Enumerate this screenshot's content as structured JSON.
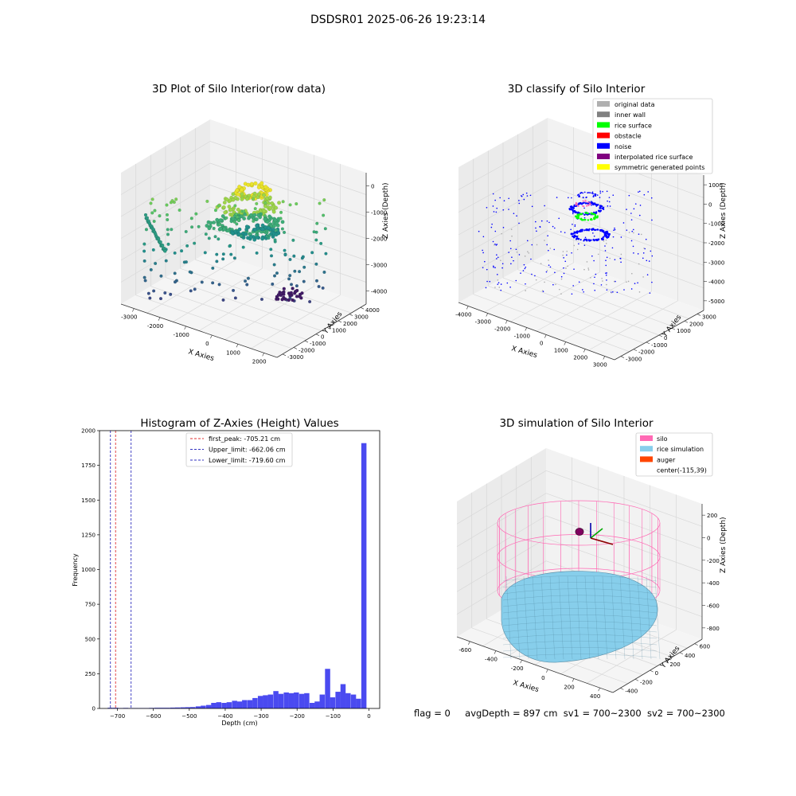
{
  "figure": {
    "suptitle": "DSDSR01 2025-06-26 19:23:14",
    "status": {
      "flag": "flag = 0",
      "avg_depth": "avgDepth = 897 cm",
      "sv1": "sv1 = 700~2300",
      "sv2": "sv2 = 700~2300"
    },
    "colors": {
      "hist_bar": "#4a4af0",
      "first_peak": "#e03030",
      "limits": "#3030c0",
      "silo": "#ff69b4",
      "rice_simulation": "#87ceeb",
      "auger": "#ff4500"
    }
  },
  "chart_data": [
    {
      "type": "scatter3d",
      "title": "3D Plot of Silo Interior(row data)",
      "xlabel": "X Axies",
      "ylabel": "Y Axies",
      "zlabel": "Z Axies (Depth)",
      "x_ticks": [
        "-3000",
        "-2000",
        "-1000",
        "0",
        "1000",
        "2000"
      ],
      "y_ticks": [
        "-3000",
        "-2000",
        "-1000",
        "0",
        "1000",
        "2000",
        "3000",
        "4000"
      ],
      "z_ticks": [
        "-4000",
        "-3000",
        "-2000",
        "-1000",
        "0"
      ],
      "xlim": [
        -3500,
        2500
      ],
      "ylim": [
        -3500,
        4000
      ],
      "zlim": [
        -4500,
        200
      ],
      "colormap": "viridis"
    },
    {
      "type": "scatter3d",
      "title": "3D classify of Silo Interior",
      "xlabel": "X Axies",
      "ylabel": "Y Axies",
      "zlabel": "Z Axies (Depth)",
      "x_ticks": [
        "-4000",
        "-3000",
        "-2000",
        "-1000",
        "0",
        "1000",
        "2000",
        "3000"
      ],
      "y_ticks": [
        "-3000",
        "-2000",
        "-1000",
        "0",
        "1000",
        "2000",
        "3000"
      ],
      "z_ticks": [
        "-5000",
        "-4000",
        "-3000",
        "-2000",
        "-1000",
        "0",
        "1000"
      ],
      "xlim": [
        -4200,
        3200
      ],
      "ylim": [
        -3500,
        3500
      ],
      "zlim": [
        -5500,
        1200
      ],
      "legend": {
        "placement": "upper-right",
        "entries": [
          {
            "label": "original data",
            "color": "#b0b0b0"
          },
          {
            "label": "inner wall",
            "color": "#808080"
          },
          {
            "label": "rice surface",
            "color": "#00ff00"
          },
          {
            "label": "obstacle",
            "color": "#ff0000"
          },
          {
            "label": "noise",
            "color": "#0000ff"
          },
          {
            "label": "interpolated rice surface",
            "color": "#800080"
          },
          {
            "label": "symmetric generated points",
            "color": "#ffff00"
          }
        ]
      }
    },
    {
      "type": "bar",
      "title": "Histogram of Z-Axies (Height) Values",
      "xlabel": "Depth (cm)",
      "ylabel": "Frequency",
      "xlim": [
        -750,
        30
      ],
      "ylim": [
        0,
        2000
      ],
      "x_ticks": [
        -700,
        -600,
        -500,
        -400,
        -300,
        -200,
        -100,
        0
      ],
      "y_ticks": [
        0,
        250,
        500,
        750,
        1000,
        1250,
        1500,
        1750,
        2000
      ],
      "bin_width": 14.4,
      "bins": [
        {
          "x": -720,
          "v": 5
        },
        {
          "x": -705,
          "v": 5
        },
        {
          "x": -691,
          "v": 3
        },
        {
          "x": -677,
          "v": 4
        },
        {
          "x": -662,
          "v": 3
        },
        {
          "x": -648,
          "v": 3
        },
        {
          "x": -633,
          "v": 3
        },
        {
          "x": -619,
          "v": 3
        },
        {
          "x": -605,
          "v": 4
        },
        {
          "x": -590,
          "v": 5
        },
        {
          "x": -576,
          "v": 5
        },
        {
          "x": -562,
          "v": 5
        },
        {
          "x": -547,
          "v": 6
        },
        {
          "x": -533,
          "v": 7
        },
        {
          "x": -518,
          "v": 8
        },
        {
          "x": -504,
          "v": 9
        },
        {
          "x": -490,
          "v": 10
        },
        {
          "x": -475,
          "v": 15
        },
        {
          "x": -461,
          "v": 20
        },
        {
          "x": -446,
          "v": 25
        },
        {
          "x": -432,
          "v": 40
        },
        {
          "x": -418,
          "v": 45
        },
        {
          "x": -403,
          "v": 40
        },
        {
          "x": -389,
          "v": 45
        },
        {
          "x": -374,
          "v": 55
        },
        {
          "x": -360,
          "v": 50
        },
        {
          "x": -346,
          "v": 60
        },
        {
          "x": -331,
          "v": 60
        },
        {
          "x": -317,
          "v": 75
        },
        {
          "x": -302,
          "v": 90
        },
        {
          "x": -288,
          "v": 95
        },
        {
          "x": -274,
          "v": 100
        },
        {
          "x": -259,
          "v": 125
        },
        {
          "x": -245,
          "v": 105
        },
        {
          "x": -230,
          "v": 115
        },
        {
          "x": -216,
          "v": 110
        },
        {
          "x": -202,
          "v": 115
        },
        {
          "x": -187,
          "v": 105
        },
        {
          "x": -173,
          "v": 110
        },
        {
          "x": -158,
          "v": 40
        },
        {
          "x": -144,
          "v": 50
        },
        {
          "x": -130,
          "v": 100
        },
        {
          "x": -115,
          "v": 285
        },
        {
          "x": -101,
          "v": 80
        },
        {
          "x": -86,
          "v": 120
        },
        {
          "x": -72,
          "v": 175
        },
        {
          "x": -58,
          "v": 110
        },
        {
          "x": -43,
          "v": 100
        },
        {
          "x": -29,
          "v": 70
        },
        {
          "x": -14,
          "v": 1910
        }
      ],
      "vlines": [
        {
          "label": "first_peak: -705.21 cm",
          "x": -705.21,
          "color": "#e03030"
        },
        {
          "label": "Upper_limit: -662.06 cm",
          "x": -662.06,
          "color": "#3030c0"
        },
        {
          "label": "Lower_limit: -719.60 cm",
          "x": -719.6,
          "color": "#3030c0"
        }
      ],
      "legend_placement": "upper-center"
    },
    {
      "type": "surface3d",
      "title": "3D simulation of Silo Interior",
      "xlabel": "X Axies",
      "ylabel": "Y Axies",
      "zlabel": "Z Axies (Depth)",
      "x_ticks": [
        "-600",
        "-400",
        "-200",
        "0",
        "200",
        "400"
      ],
      "y_ticks": [
        "-400",
        "-200",
        "0",
        "200",
        "400",
        "600"
      ],
      "z_ticks": [
        "-800",
        "-600",
        "-400",
        "-200",
        "0",
        "200"
      ],
      "xlim": [
        -700,
        500
      ],
      "ylim": [
        -500,
        700
      ],
      "zlim": [
        -1000,
        300
      ],
      "legend": {
        "placement": "upper-right",
        "entries": [
          {
            "label": "silo",
            "color": "#ff69b4"
          },
          {
            "label": "rice simulation",
            "color": "#87ceeb"
          },
          {
            "label": "auger",
            "color": "#ff4500"
          },
          {
            "label": "center(-115,39)",
            "color": ""
          }
        ]
      }
    }
  ]
}
